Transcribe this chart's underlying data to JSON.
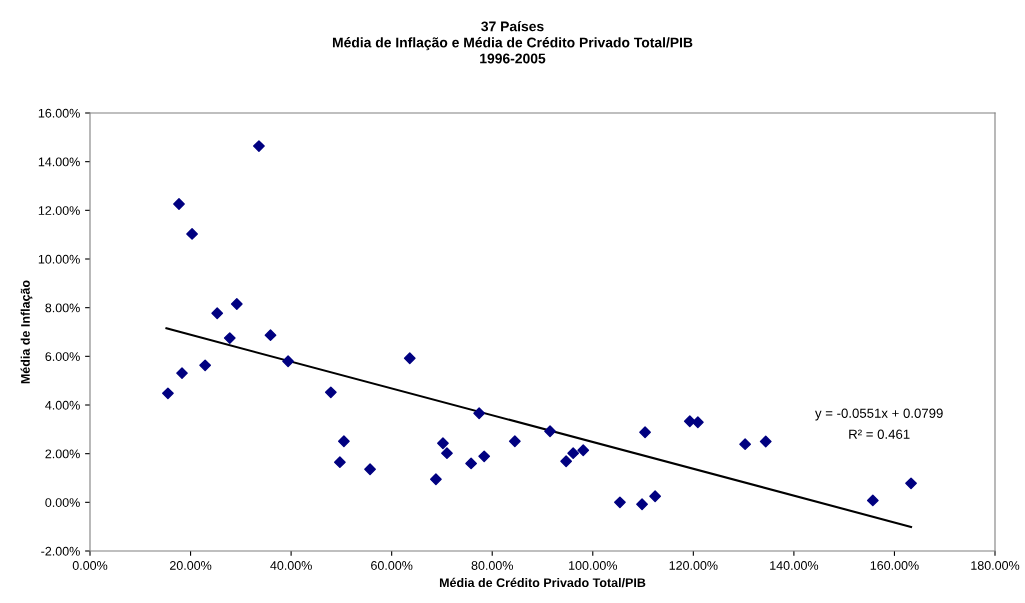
{
  "chart_data": {
    "type": "scatter",
    "title": "37 Países\nMédia de Inflação e Média de Crédito Privado Total/PIB\n1996-2005",
    "xlabel": "Média de Crédito Privado Total/PIB",
    "ylabel": "Média de Inflação",
    "series": [
      {
        "color": "#000080",
        "marker": "diamond",
        "x": [
          15.5,
          17.7,
          18.3,
          20.3,
          22.9,
          25.3,
          27.8,
          29.2,
          33.6,
          35.9,
          39.4,
          47.9,
          49.7,
          50.5,
          55.7,
          63.6,
          68.8,
          70.2,
          71.0,
          75.8,
          77.4,
          78.4,
          84.5,
          91.5,
          94.7,
          96.1,
          98.1,
          105.4,
          109.8,
          110.4,
          112.4,
          119.3,
          120.9,
          130.3,
          134.4,
          155.7,
          163.3
        ],
        "values": [
          4.48,
          12.26,
          5.31,
          11.03,
          5.63,
          7.77,
          6.75,
          8.15,
          14.64,
          6.87,
          5.8,
          4.52,
          1.65,
          2.51,
          1.36,
          5.92,
          0.95,
          2.43,
          2.02,
          1.6,
          3.66,
          1.89,
          2.51,
          2.92,
          1.69,
          2.02,
          2.14,
          0.0,
          -0.08,
          2.88,
          0.25,
          3.33,
          3.29,
          2.39,
          2.5,
          0.08,
          0.78
        ]
      },
      {
        "type": "line",
        "color": "#000000",
        "marker": "none",
        "x": [
          15.2,
          163.3
        ],
        "values": [
          7.15,
          -1.01
        ]
      }
    ],
    "annotations": [
      "y = -0.0551x + 0.0799",
      "R² = 0.461"
    ],
    "xlim": [
      0,
      180
    ],
    "ylim": [
      -2,
      16
    ],
    "xticks": [
      {
        "value": 0,
        "label": "0.00%"
      },
      {
        "value": 20,
        "label": "20.00%"
      },
      {
        "value": 40,
        "label": "40.00%"
      },
      {
        "value": 60,
        "label": "60.00%"
      },
      {
        "value": 80,
        "label": "80.00%"
      },
      {
        "value": 100,
        "label": "100.00%"
      },
      {
        "value": 120,
        "label": "120.00%"
      },
      {
        "value": 140,
        "label": "140.00%"
      },
      {
        "value": 160,
        "label": "160.00%"
      },
      {
        "value": 180,
        "label": "180.00%"
      }
    ],
    "yticks": [
      {
        "value": -2,
        "label": "-2.00%"
      },
      {
        "value": 0,
        "label": "0.00%"
      },
      {
        "value": 2,
        "label": "2.00%"
      },
      {
        "value": 4,
        "label": "4.00%"
      },
      {
        "value": 6,
        "label": "6.00%"
      },
      {
        "value": 8,
        "label": "8.00%"
      },
      {
        "value": 10,
        "label": "10.00%"
      },
      {
        "value": 12,
        "label": "12.00%"
      },
      {
        "value": 14,
        "label": "14.00%"
      },
      {
        "value": 16,
        "label": "16.00%"
      }
    ],
    "grid": false,
    "legend": false
  }
}
